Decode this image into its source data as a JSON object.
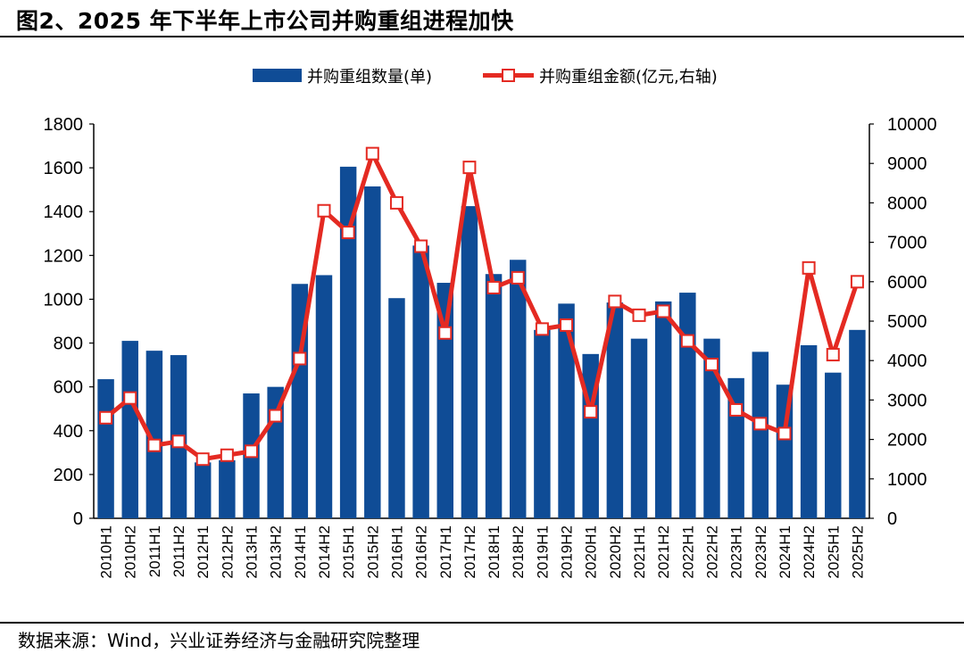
{
  "title": "图2、2025 年下半年上市公司并购重组进程加快",
  "source": "数据来源：Wind，兴业证券经济与金融研究院整理",
  "colors": {
    "bar": "#0f4c96",
    "line": "#e42a22",
    "marker_fill": "#ffffff"
  },
  "chart_data": {
    "type": "bar+line",
    "categories": [
      "2010H1",
      "2010H2",
      "2011H1",
      "2011H2",
      "2012H1",
      "2012H2",
      "2013H1",
      "2013H2",
      "2014H1",
      "2014H2",
      "2015H1",
      "2015H2",
      "2016H1",
      "2016H2",
      "2017H1",
      "2017H2",
      "2018H1",
      "2018H2",
      "2019H1",
      "2019H2",
      "2020H1",
      "2020H2",
      "2021H1",
      "2021H2",
      "2022H1",
      "2022H2",
      "2023H1",
      "2023H2",
      "2024H1",
      "2024H2",
      "2025H1",
      "2025H2"
    ],
    "series": [
      {
        "name": "并购重组数量(单)",
        "type": "bar",
        "axis": "left",
        "values": [
          635,
          810,
          765,
          745,
          255,
          265,
          570,
          600,
          1070,
          1110,
          1605,
          1515,
          1005,
          1245,
          1075,
          1425,
          1115,
          1180,
          860,
          980,
          750,
          985,
          820,
          990,
          1030,
          820,
          640,
          760,
          610,
          790,
          665,
          860
        ]
      },
      {
        "name": "并购重组金额(亿元,右轴)",
        "type": "line",
        "axis": "right",
        "values": [
          2550,
          3050,
          1850,
          1950,
          1500,
          1600,
          1700,
          2600,
          4050,
          7800,
          7250,
          9250,
          8000,
          6900,
          4700,
          8900,
          5850,
          6100,
          4800,
          4900,
          2700,
          5500,
          5150,
          5250,
          4500,
          3900,
          2750,
          2400,
          2150,
          6350,
          4150,
          6000
        ]
      }
    ],
    "yleft": {
      "min": 0,
      "max": 1800,
      "ticks": [
        0,
        200,
        400,
        600,
        800,
        1000,
        1200,
        1400,
        1600,
        1800
      ]
    },
    "yright": {
      "min": 0,
      "max": 10000,
      "ticks": [
        0,
        1000,
        2000,
        3000,
        4000,
        5000,
        6000,
        7000,
        8000,
        9000,
        10000
      ]
    },
    "legend_position": "top-center"
  }
}
